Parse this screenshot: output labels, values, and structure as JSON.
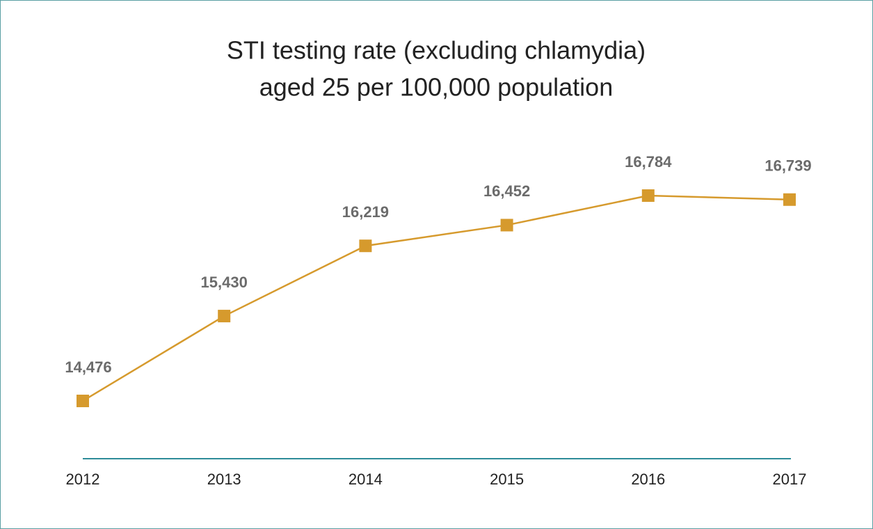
{
  "chart_data": {
    "type": "line",
    "title": [
      "STI testing rate (excluding chlamydia)",
      "aged 25 per 100,000 population"
    ],
    "categories": [
      "2012",
      "2013",
      "2014",
      "2015",
      "2016",
      "2017"
    ],
    "values": [
      14476,
      15430,
      16219,
      16452,
      16784,
      16739
    ],
    "value_labels": [
      "14,476",
      "15,430",
      "16,219",
      "16,452",
      "16,784",
      "16,739"
    ],
    "color": "#d69a2d"
  }
}
